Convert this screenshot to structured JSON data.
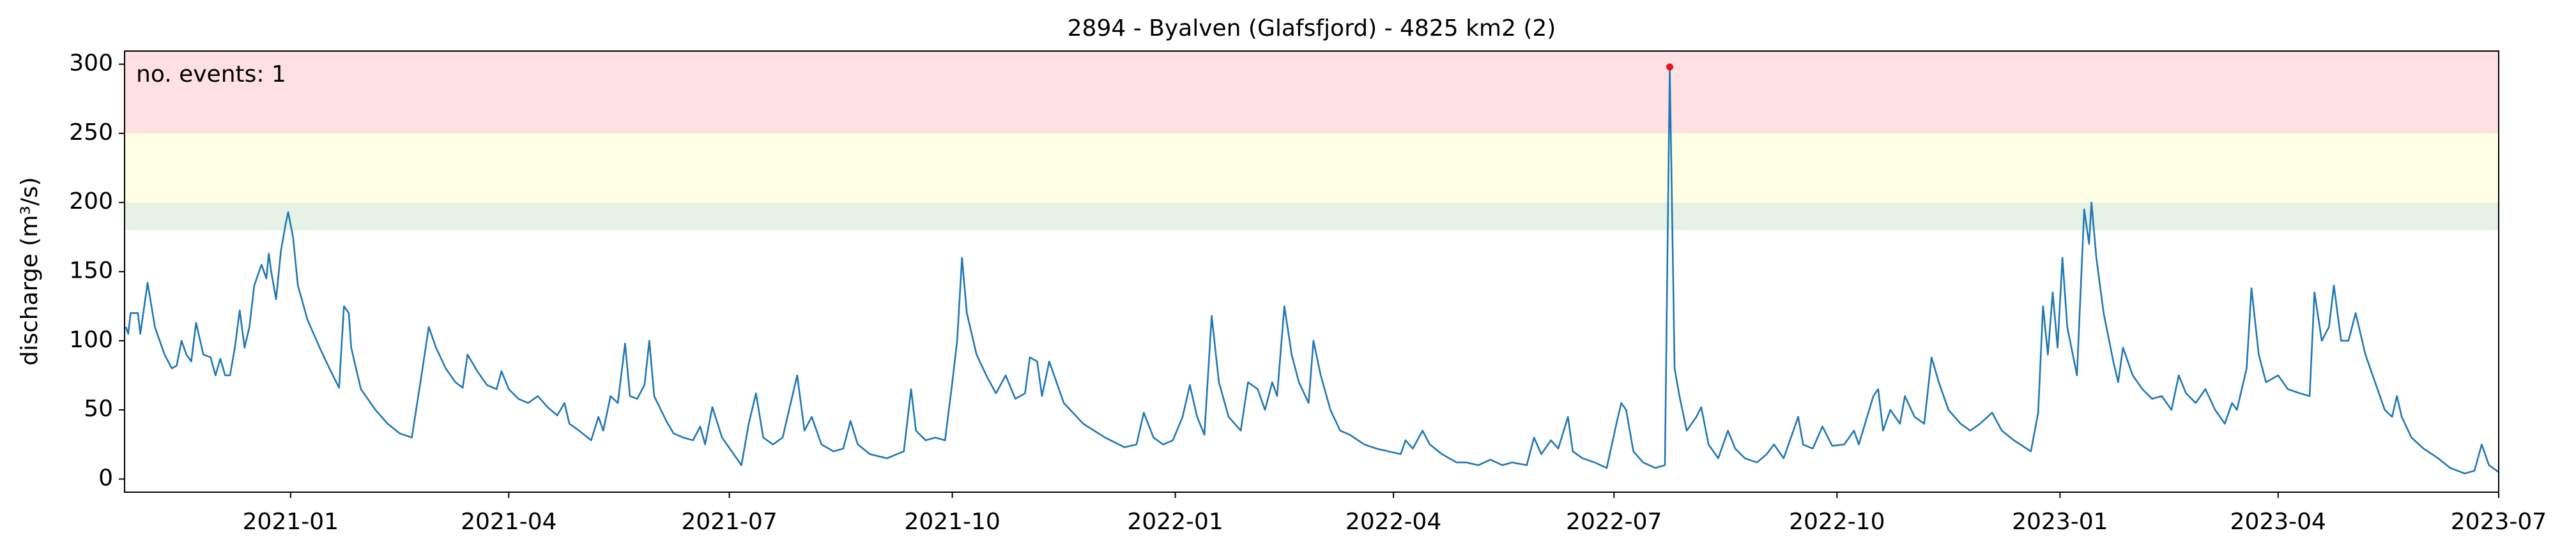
{
  "chart_data": {
    "type": "line",
    "title": "2894 - Byalven (Glafsfjord) - 4825 km2 (2)",
    "y_label": "discharge (m³/s)",
    "annotation": "no. events: 1",
    "xlim": [
      18559.5,
      19539
    ],
    "xticks": [
      {
        "value": 18628,
        "label": "2021-01"
      },
      {
        "value": 18718,
        "label": "2021-04"
      },
      {
        "value": 18809,
        "label": "2021-07"
      },
      {
        "value": 18901,
        "label": "2021-10"
      },
      {
        "value": 18993,
        "label": "2022-01"
      },
      {
        "value": 19083,
        "label": "2022-04"
      },
      {
        "value": 19174,
        "label": "2022-07"
      },
      {
        "value": 19266,
        "label": "2022-10"
      },
      {
        "value": 19358,
        "label": "2023-01"
      },
      {
        "value": 19448,
        "label": "2023-04"
      },
      {
        "value": 19539,
        "label": "2023-07"
      }
    ],
    "ylim": [
      -9.5,
      309.5
    ],
    "yticks": [
      0,
      50,
      100,
      150,
      200,
      250,
      300
    ],
    "bands": [
      {
        "from": 180,
        "to": 200,
        "color": "#e6f2e6"
      },
      {
        "from": 200,
        "to": 250,
        "color": "#ffffe3"
      },
      {
        "from": 250,
        "to": 309.5,
        "color": "#ffe1e4"
      }
    ],
    "series": [
      {
        "color": "#1f77b4",
        "x": [
          18560,
          18561,
          18562,
          18565,
          18566,
          18569,
          18572,
          18576,
          18579,
          18581,
          18583,
          18585,
          18587,
          18589,
          18592,
          18595,
          18597,
          18599,
          18601,
          18603,
          18605,
          18607,
          18609,
          18611,
          18613,
          18615,
          18616,
          18618,
          18619,
          18620,
          18622,
          18624,
          18626,
          18627,
          18629,
          18631,
          18635,
          18640,
          18644,
          18648,
          18650,
          18652,
          18653,
          18657,
          18663,
          18668,
          18673,
          18678,
          18682,
          18685,
          18688,
          18692,
          18696,
          18699,
          18701,
          18705,
          18709,
          18713,
          18715,
          18718,
          18722,
          18726,
          18730,
          18734,
          18738,
          18741,
          18743,
          18747,
          18752,
          18755,
          18757,
          18760,
          18763,
          18766,
          18768,
          18771,
          18774,
          18776,
          18778,
          18783,
          18786,
          18790,
          18794,
          18797,
          18799,
          18802,
          18806,
          18810,
          18814,
          18817,
          18820,
          18823,
          18827,
          18831,
          18837,
          18840,
          18843,
          18847,
          18852,
          18856,
          18859,
          18862,
          18867,
          18874,
          18881,
          18884,
          18886,
          18890,
          18894,
          18898,
          18901,
          18903,
          18905,
          18907,
          18911,
          18915,
          18919,
          18923,
          18927,
          18931,
          18933,
          18936,
          18938,
          18941,
          18943,
          18947,
          18955,
          18964,
          18972,
          18977,
          18980,
          18984,
          18988,
          18992,
          18996,
          18999,
          19002,
          19005,
          19008,
          19011,
          19015,
          19020,
          19023,
          19027,
          19030,
          19033,
          19035,
          19038,
          19041,
          19044,
          19048,
          19050,
          19053,
          19057,
          19061,
          19065,
          19071,
          19076,
          19081,
          19086,
          19088,
          19091,
          19095,
          19098,
          19103,
          19109,
          19113,
          19118,
          19123,
          19128,
          19132,
          19138,
          19141,
          19144,
          19148,
          19151,
          19155,
          19157,
          19161,
          19166,
          19171,
          19175,
          19177,
          19179,
          19182,
          19186,
          19191,
          19195,
          19197,
          19199,
          19201,
          19204,
          19208,
          19210,
          19213,
          19217,
          19221,
          19224,
          19228,
          19233,
          19237,
          19240,
          19244,
          19250,
          19252,
          19256,
          19260,
          19264,
          19269,
          19273,
          19275,
          19281,
          19283,
          19285,
          19288,
          19292,
          19294,
          19298,
          19302,
          19305,
          19308,
          19312,
          19317,
          19321,
          19325,
          19330,
          19334,
          19339,
          19346,
          19349,
          19351,
          19353,
          19355,
          19357,
          19359,
          19361,
          19365,
          19368,
          19370,
          19371,
          19373,
          19376,
          19380,
          19382,
          19384,
          19388,
          19392,
          19396,
          19400,
          19404,
          19407,
          19410,
          19414,
          19418,
          19422,
          19426,
          19429,
          19431,
          19435,
          19437,
          19440,
          19443,
          19448,
          19452,
          19457,
          19461,
          19463,
          19466,
          19469,
          19471,
          19474,
          19477,
          19480,
          19484,
          19488,
          19492,
          19495,
          19497,
          19499,
          19503,
          19508,
          19514,
          19519,
          19525,
          19529,
          19532,
          19535,
          19539
        ],
        "values": [
          110,
          105,
          120,
          120,
          105,
          142,
          110,
          90,
          80,
          82,
          100,
          90,
          85,
          113,
          90,
          88,
          75,
          87,
          75,
          75,
          95,
          122,
          95,
          110,
          140,
          150,
          155,
          145,
          163,
          150,
          130,
          165,
          185,
          193,
          175,
          140,
          115,
          95,
          80,
          66,
          125,
          120,
          95,
          65,
          50,
          40,
          33,
          30,
          75,
          110,
          95,
          80,
          70,
          66,
          90,
          78,
          68,
          65,
          78,
          65,
          58,
          55,
          60,
          52,
          46,
          55,
          40,
          35,
          28,
          45,
          35,
          60,
          55,
          98,
          60,
          58,
          68,
          100,
          60,
          42,
          33,
          30,
          28,
          38,
          25,
          52,
          30,
          20,
          10,
          40,
          62,
          30,
          25,
          30,
          75,
          35,
          45,
          25,
          20,
          22,
          42,
          25,
          18,
          15,
          20,
          65,
          35,
          28,
          30,
          28,
          70,
          100,
          160,
          120,
          90,
          75,
          62,
          75,
          58,
          62,
          88,
          85,
          60,
          85,
          75,
          55,
          40,
          30,
          23,
          25,
          48,
          30,
          25,
          28,
          45,
          68,
          45,
          32,
          118,
          70,
          45,
          35,
          70,
          65,
          50,
          70,
          60,
          125,
          90,
          70,
          55,
          100,
          75,
          50,
          35,
          32,
          25,
          22,
          20,
          18,
          28,
          22,
          35,
          25,
          18,
          12,
          12,
          10,
          14,
          10,
          12,
          10,
          30,
          18,
          28,
          22,
          45,
          20,
          15,
          12,
          8,
          40,
          55,
          50,
          20,
          12,
          8,
          10,
          298,
          80,
          60,
          35,
          45,
          52,
          25,
          15,
          35,
          22,
          15,
          12,
          18,
          25,
          15,
          45,
          25,
          22,
          38,
          24,
          25,
          35,
          25,
          60,
          65,
          35,
          50,
          40,
          60,
          45,
          40,
          88,
          70,
          50,
          40,
          35,
          40,
          48,
          35,
          28,
          20,
          48,
          125,
          90,
          135,
          95,
          160,
          110,
          75,
          195,
          170,
          200,
          160,
          120,
          85,
          70,
          95,
          75,
          65,
          58,
          60,
          50,
          75,
          62,
          55,
          65,
          50,
          40,
          55,
          50,
          80,
          138,
          90,
          70,
          75,
          65,
          62,
          60,
          135,
          100,
          110,
          140,
          100,
          100,
          120,
          90,
          70,
          50,
          45,
          60,
          45,
          30,
          22,
          15,
          8,
          4,
          6,
          25,
          10,
          5
        ]
      }
    ],
    "events": {
      "x": [
        19197
      ],
      "values": [
        298
      ],
      "color": "#e8141a"
    }
  }
}
